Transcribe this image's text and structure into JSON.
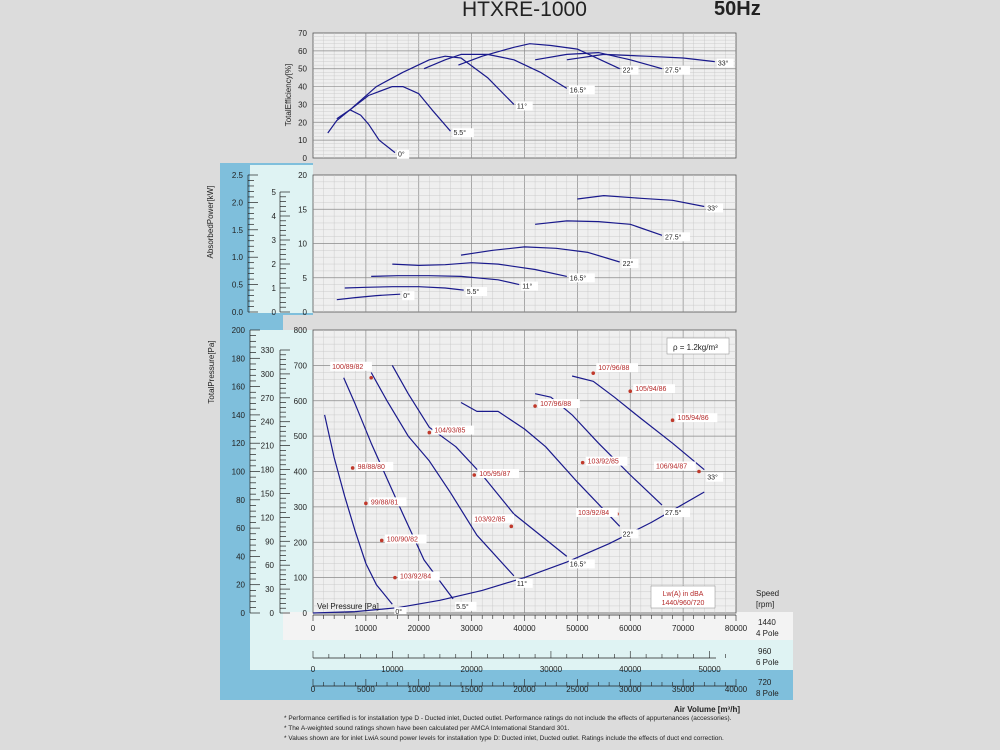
{
  "title": {
    "model": "HTXRE-1000",
    "frequency": "50Hz"
  },
  "colors": {
    "curve": "#1a1a8c",
    "label": "#b42a2a",
    "dot": "#c0392b",
    "blue_panel": "#7fbfdc",
    "cyan_panel": "#dff3f3",
    "grid": "#9a9a9a",
    "plot_bg": "#efefef"
  },
  "efficiency": {
    "ylabel": "TotalEfficiency[%]",
    "ticks": [
      "0",
      "10",
      "20",
      "30",
      "40",
      "50",
      "60",
      "70"
    ],
    "angle_labels": [
      "0°",
      "5.5°",
      "11°",
      "16.5°",
      "22°",
      "27.5°",
      "33°"
    ]
  },
  "power": {
    "ylabel": "AbsorbedPower[kW]",
    "blue_ticks": [
      "0.0",
      "0.5",
      "1.0",
      "1.5",
      "2.0",
      "2.5"
    ],
    "cyan_ticks": [
      "0",
      "1",
      "2",
      "3",
      "4",
      "5"
    ],
    "main_ticks": [
      "0",
      "5",
      "10",
      "15",
      "20"
    ],
    "angle_labels": [
      "0°",
      "5.5°",
      "11°",
      "16.5°",
      "22°",
      "27.5°",
      "33°"
    ]
  },
  "pressure": {
    "ylabel": "TotalPressure[Pa]",
    "blue_ticks": [
      "0",
      "20",
      "40",
      "60",
      "80",
      "100",
      "120",
      "140",
      "160",
      "180",
      "200"
    ],
    "cyan_ticks": [
      "0",
      "30",
      "60",
      "90",
      "120",
      "150",
      "180",
      "210",
      "240",
      "270",
      "300",
      "330"
    ],
    "main_ticks": [
      "0",
      "100",
      "200",
      "300",
      "400",
      "500",
      "600",
      "700",
      "800"
    ],
    "density_note": "ρ = 1.2kg/m³",
    "vel_label": "Vel  Pressure [Pa]",
    "angle_labels": [
      "0°",
      "5.5°",
      "11°",
      "16.5°",
      "22°",
      "27.5°",
      "33°"
    ],
    "noise_labels": [
      "100/89/82",
      "104/93/85",
      "107/96/88",
      "107/96/88",
      "105/94/86",
      "105/94/86",
      "98/88/80",
      "99/88/81",
      "100/90/82",
      "103/92/84",
      "105/95/87",
      "103/92/85",
      "103/92/84",
      "103/92/85",
      "106/94/87"
    ],
    "legend_line1": "Lw(A) in dBA",
    "legend_line2": "1440/960/720"
  },
  "xaxes": {
    "speed_title": "Speed",
    "speed_unit": "[rpm]",
    "pole1": {
      "rpm": "1440",
      "pole": "4 Pole",
      "ticks": [
        "0",
        "10000",
        "20000",
        "30000",
        "40000",
        "50000",
        "60000",
        "70000",
        "80000"
      ]
    },
    "pole2": {
      "rpm": "960",
      "pole": "6 Pole",
      "ticks": [
        "0",
        "10000",
        "20000",
        "30000",
        "40000",
        "50000"
      ]
    },
    "pole3": {
      "rpm": "720",
      "pole": "8 Pole",
      "ticks": [
        "0",
        "5000",
        "10000",
        "15000",
        "20000",
        "25000",
        "30000",
        "35000",
        "40000"
      ]
    },
    "title": "Air Volume [m³/h]"
  },
  "notes": [
    "* Performance certified is for installation type D - Ducted inlet, Ducted outlet. Performance ratings do not include the effects of appurtenances (accessories).",
    "* The A-weighted sound ratings shown have been calculated per AMCA International Standard 301.",
    "* Values shown are for inlet LwiA sound power levels for installation type D: Ducted inlet, Ducted outlet. Ratings include the effects of duct end correction."
  ],
  "chart_data": [
    {
      "type": "line",
      "title": "",
      "ylabel": "TotalEfficiency[%]",
      "xlabel": "Air Volume [m³/h]",
      "ylim": [
        0,
        70
      ],
      "xlim": [
        0,
        80000
      ],
      "grid": true,
      "series": [
        {
          "name": "0°",
          "x": [
            2800,
            4500,
            7000,
            9000,
            10500,
            12500,
            15500
          ],
          "y": [
            14,
            21,
            27,
            24,
            19,
            10,
            3
          ]
        },
        {
          "name": "5.5°",
          "x": [
            4500,
            7000,
            10500,
            15000,
            17000,
            20000,
            22500,
            26000
          ],
          "y": [
            22,
            27,
            35,
            40,
            40,
            36,
            27,
            15
          ]
        },
        {
          "name": "11°",
          "x": [
            7000,
            12000,
            17000,
            22000,
            25000,
            28000,
            33000,
            38000
          ],
          "y": [
            27,
            40,
            48,
            55,
            57,
            56,
            45,
            30
          ]
        },
        {
          "name": "16.5°",
          "x": [
            21000,
            25000,
            28000,
            33000,
            38000,
            43000,
            48000
          ],
          "y": [
            50,
            55,
            58,
            58,
            55,
            48,
            39
          ]
        },
        {
          "name": "22°",
          "x": [
            27500,
            32000,
            38000,
            41000,
            45000,
            50000,
            58000
          ],
          "y": [
            52,
            57,
            62,
            64,
            63,
            61,
            50
          ]
        },
        {
          "name": "27.5°",
          "x": [
            42000,
            48000,
            54000,
            60000,
            66000
          ],
          "y": [
            55,
            58,
            59,
            55,
            50
          ]
        },
        {
          "name": "33°",
          "x": [
            48000,
            55000,
            63000,
            70000,
            76000
          ],
          "y": [
            55,
            58,
            57,
            56,
            54
          ]
        }
      ]
    },
    {
      "type": "line",
      "title": "",
      "ylabel": "AbsorbedPower[kW]",
      "xlabel": "Air Volume [m³/h]",
      "ylim": [
        0,
        20
      ],
      "xlim": [
        0,
        80000
      ],
      "grid": true,
      "series": [
        {
          "name": "0°",
          "x": [
            4500,
            8000,
            12000,
            16500
          ],
          "y": [
            1.8,
            2.1,
            2.4,
            2.6
          ]
        },
        {
          "name": "5.5°",
          "x": [
            6000,
            10000,
            15000,
            20000,
            25000,
            28500
          ],
          "y": [
            3.5,
            3.6,
            3.7,
            3.7,
            3.5,
            3.2
          ]
        },
        {
          "name": "11°",
          "x": [
            11000,
            16000,
            22000,
            28000,
            35000,
            39000
          ],
          "y": [
            5.2,
            5.3,
            5.3,
            5.2,
            4.7,
            4.0
          ]
        },
        {
          "name": "16.5°",
          "x": [
            15000,
            20000,
            25000,
            30000,
            35000,
            42000,
            48000
          ],
          "y": [
            7.0,
            6.8,
            6.9,
            7.2,
            7.0,
            6.2,
            5.2
          ]
        },
        {
          "name": "22°",
          "x": [
            28000,
            34000,
            40000,
            46000,
            52000,
            58000
          ],
          "y": [
            8.3,
            9.0,
            9.5,
            9.3,
            8.7,
            7.3
          ]
        },
        {
          "name": "27.5°",
          "x": [
            42000,
            48000,
            54000,
            60000,
            66000
          ],
          "y": [
            12.8,
            13.3,
            13.2,
            12.8,
            11.2
          ]
        },
        {
          "name": "33°",
          "x": [
            50000,
            55000,
            62000,
            68000,
            74000
          ],
          "y": [
            16.5,
            17.0,
            16.6,
            16.3,
            15.4
          ]
        }
      ]
    },
    {
      "type": "line",
      "title": "",
      "ylabel": "TotalPressure[Pa]",
      "xlabel": "Air Volume [m³/h]",
      "ylim": [
        0,
        800
      ],
      "xlim": [
        0,
        80000
      ],
      "grid": true,
      "series": [
        {
          "name": "0°",
          "x": [
            2200,
            4000,
            6000,
            8000,
            10000,
            12000,
            15000
          ],
          "y": [
            560,
            440,
            330,
            230,
            140,
            80,
            25
          ]
        },
        {
          "name": "5.5°",
          "x": [
            5800,
            8000,
            11000,
            14000,
            17000,
            21000,
            26500
          ],
          "y": [
            665,
            590,
            480,
            380,
            280,
            150,
            40
          ]
        },
        {
          "name": "11°",
          "x": [
            11000,
            14000,
            18000,
            22000,
            26000,
            31000,
            38000
          ],
          "y": [
            680,
            600,
            500,
            430,
            340,
            220,
            105
          ]
        },
        {
          "name": "16.5°",
          "x": [
            15000,
            18000,
            22000,
            27000,
            32000,
            38000,
            48000
          ],
          "y": [
            700,
            620,
            525,
            470,
            390,
            280,
            160
          ]
        },
        {
          "name": "22°",
          "x": [
            28000,
            31000,
            35000,
            40000,
            44000,
            50000,
            58000
          ],
          "y": [
            595,
            570,
            570,
            520,
            470,
            370,
            245
          ]
        },
        {
          "name": "27.5°",
          "x": [
            42000,
            45000,
            49000,
            54000,
            60000,
            66000
          ],
          "y": [
            620,
            610,
            560,
            480,
            390,
            305
          ]
        },
        {
          "name": "33°",
          "x": [
            49000,
            53000,
            57000,
            62000,
            68000,
            74000
          ],
          "y": [
            670,
            655,
            610,
            550,
            480,
            405
          ]
        },
        {
          "name": "Vel  Pressure [Pa]",
          "x": [
            0,
            8000,
            16000,
            24000,
            32000,
            40000,
            48000,
            56000,
            64000,
            74000
          ],
          "y": [
            0,
            4,
            15,
            36,
            64,
            100,
            144,
            196,
            256,
            342
          ]
        }
      ]
    }
  ]
}
